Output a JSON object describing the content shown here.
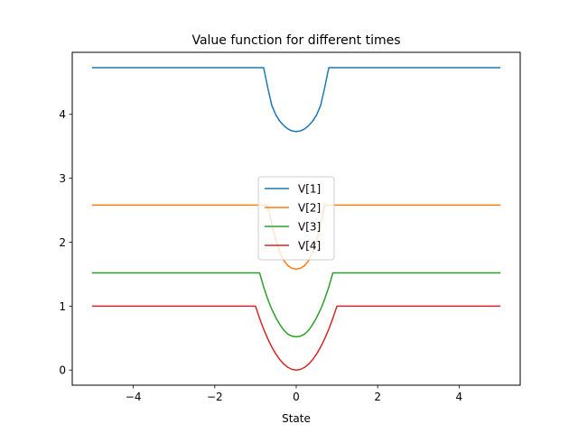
{
  "chart_data": {
    "type": "line",
    "title": "Value function for different times",
    "xlabel": "State",
    "ylabel": "",
    "xlim": [
      -5.5,
      5.5
    ],
    "ylim": [
      -0.237,
      4.97
    ],
    "xticks": [
      -4,
      -2,
      0,
      2,
      4
    ],
    "xtick_labels": [
      "−4",
      "−2",
      "0",
      "2",
      "4"
    ],
    "yticks": [
      0,
      1,
      2,
      3,
      4
    ],
    "ytick_labels": [
      "0",
      "1",
      "2",
      "3",
      "4"
    ],
    "grid": false,
    "legend_position": "center",
    "series": [
      {
        "name": "V[1]",
        "color": "#1f77b4",
        "x": [
          -5,
          -0.8,
          -0.7,
          -0.6,
          -0.5,
          -0.4,
          -0.3,
          -0.2,
          -0.1,
          0,
          0.1,
          0.2,
          0.3,
          0.4,
          0.5,
          0.6,
          0.7,
          0.8,
          5
        ],
        "values": [
          4.73,
          4.73,
          4.42,
          4.14,
          3.99,
          3.89,
          3.82,
          3.77,
          3.74,
          3.73,
          3.74,
          3.77,
          3.82,
          3.89,
          3.99,
          4.14,
          4.42,
          4.73,
          4.73
        ]
      },
      {
        "name": "V[2]",
        "color": "#ff7f0e",
        "x": [
          -5,
          -0.7,
          -0.6,
          -0.5,
          -0.4,
          -0.3,
          -0.2,
          -0.1,
          0,
          0.1,
          0.2,
          0.3,
          0.4,
          0.5,
          0.6,
          0.7,
          5
        ],
        "values": [
          2.58,
          2.58,
          2.28,
          2.03,
          1.84,
          1.71,
          1.63,
          1.59,
          1.58,
          1.59,
          1.63,
          1.71,
          1.84,
          2.03,
          2.28,
          2.58,
          2.58
        ]
      },
      {
        "name": "V[3]",
        "color": "#2ca02c",
        "x": [
          -5,
          -0.9,
          -0.8,
          -0.7,
          -0.6,
          -0.5,
          -0.4,
          -0.3,
          -0.2,
          -0.1,
          0,
          0.1,
          0.2,
          0.3,
          0.4,
          0.5,
          0.6,
          0.7,
          0.8,
          0.9,
          5
        ],
        "values": [
          1.52,
          1.52,
          1.3,
          1.11,
          0.95,
          0.82,
          0.71,
          0.62,
          0.56,
          0.53,
          0.52,
          0.53,
          0.56,
          0.62,
          0.71,
          0.82,
          0.95,
          1.11,
          1.3,
          1.52,
          1.52
        ]
      },
      {
        "name": "V[4]",
        "color": "#d62728",
        "x": [
          -5,
          -1.0,
          -0.9,
          -0.8,
          -0.7,
          -0.6,
          -0.5,
          -0.4,
          -0.3,
          -0.2,
          -0.1,
          0,
          0.1,
          0.2,
          0.3,
          0.4,
          0.5,
          0.6,
          0.7,
          0.8,
          0.9,
          1.0,
          5
        ],
        "values": [
          1.0,
          1.0,
          0.81,
          0.64,
          0.49,
          0.36,
          0.25,
          0.16,
          0.09,
          0.04,
          0.01,
          0.0,
          0.01,
          0.04,
          0.09,
          0.16,
          0.25,
          0.36,
          0.49,
          0.64,
          0.81,
          1.0,
          1.0
        ]
      }
    ]
  }
}
